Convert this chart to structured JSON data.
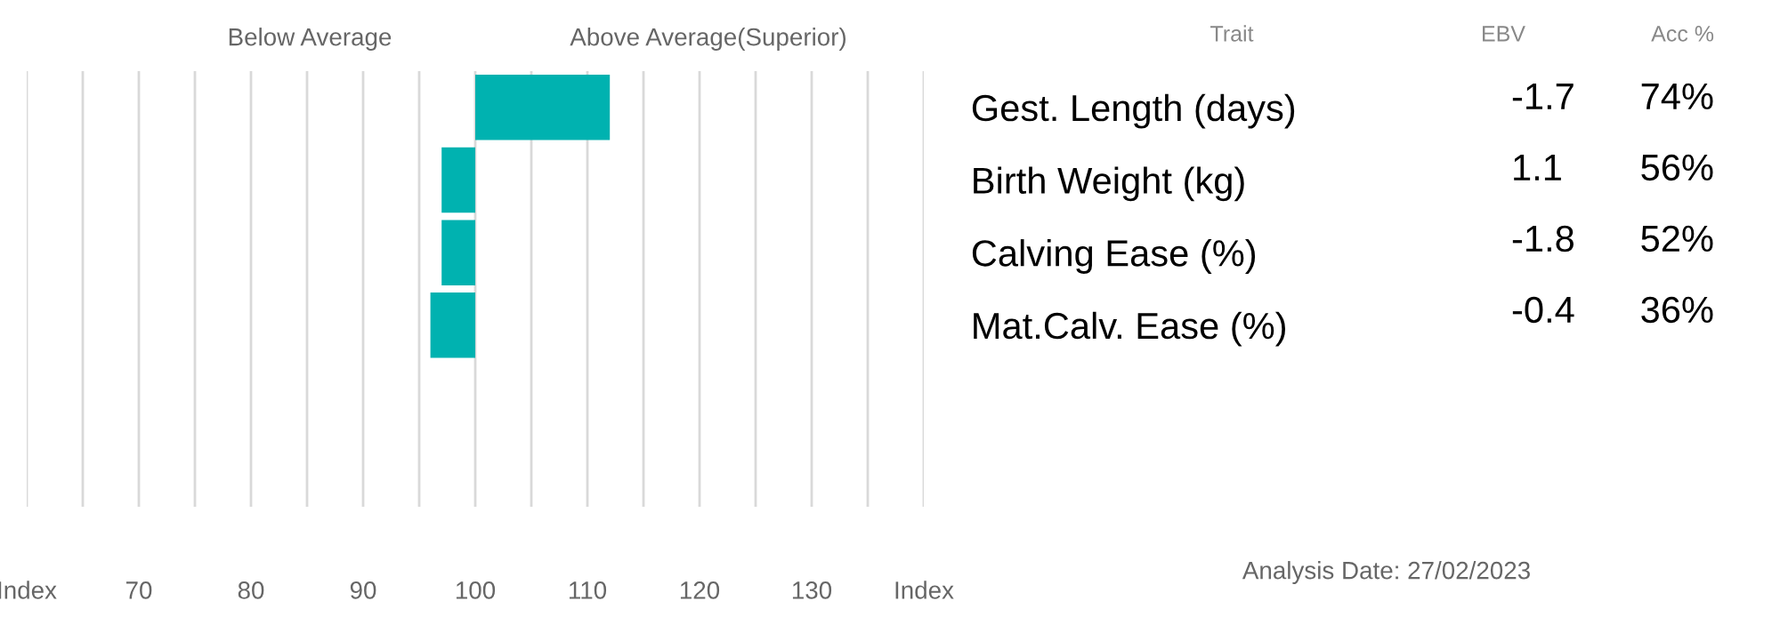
{
  "chart_data": {
    "type": "bar",
    "orientation": "horizontal",
    "categories": [
      "Gest. Length (days)",
      "Birth Weight (kg)",
      "Calving Ease (%)",
      "Mat.Calv. Ease (%)",
      null,
      null
    ],
    "base": [
      100,
      100,
      100,
      100,
      null,
      null
    ],
    "values": [
      12,
      -3,
      -3,
      -4,
      null,
      null
    ],
    "color": "#00b2b0",
    "xlim": [
      60,
      140
    ],
    "xticks": [
      {
        "value": 60,
        "label": "Index"
      },
      {
        "value": 65,
        "label": null
      },
      70,
      {
        "value": 75,
        "label": null
      },
      80,
      {
        "value": 85,
        "label": null
      },
      90,
      {
        "value": 95,
        "label": null
      },
      100,
      {
        "value": 105,
        "label": null
      },
      110,
      {
        "value": 115,
        "label": null
      },
      120,
      {
        "value": 125,
        "label": null
      },
      130,
      {
        "value": 135,
        "label": null
      },
      {
        "value": 140,
        "label": "Index"
      }
    ],
    "grid": "x",
    "annotations": [
      "Below Average",
      "Above Average(Superior)",
      "Trait",
      "EBV",
      "Acc %",
      "-1.7",
      "74%",
      "1.1",
      "56%",
      "-1.8",
      "52%",
      "-0.4",
      "36%",
      "Analysis Date: 27/02/2023"
    ]
  }
}
